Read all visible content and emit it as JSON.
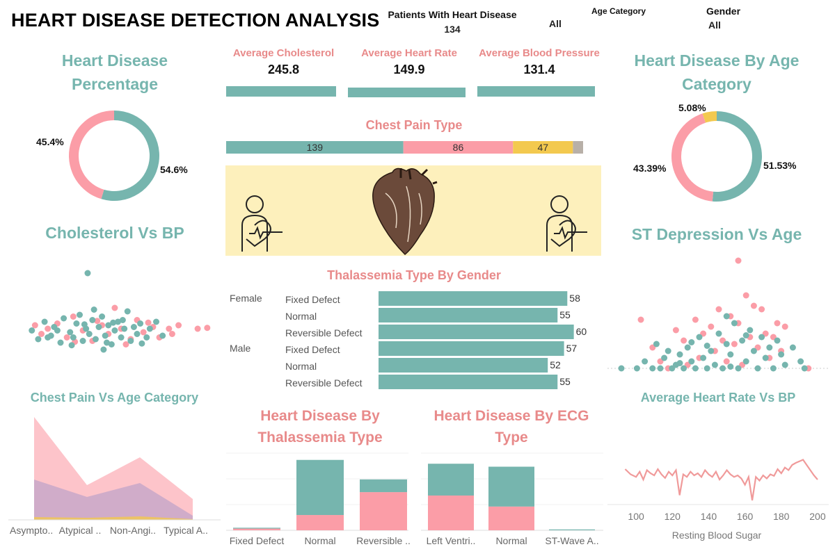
{
  "header": {
    "title": "HEART DISEASE DETECTION ANALYSIS",
    "patients_label": "Patients With Heart Disease",
    "patients_value": "134",
    "filter_all_1": "All",
    "age_category_label": "Age Category",
    "gender_label": "Gender",
    "gender_value": "All"
  },
  "colors": {
    "teal": "#76b5ae",
    "pink": "#fb9da7",
    "yellow": "#f3c94f",
    "gray": "#b8b0a8",
    "purple": "#c4a6c8",
    "banner": "#fdf0bc"
  },
  "icons": [
    "doctor-heart-icon-left",
    "anatomical-heart-illustration",
    "doctor-heart-icon-right"
  ],
  "chart_data": [
    {
      "id": "heart_disease_percentage",
      "type": "pie",
      "title": "Heart Disease Percentage",
      "slices": [
        {
          "label": "54.6%",
          "value": 54.6,
          "color": "#76b5ae"
        },
        {
          "label": "45.4%",
          "value": 45.4,
          "color": "#fb9da7"
        }
      ]
    },
    {
      "id": "kpis",
      "type": "bar",
      "items": [
        {
          "label": "Average Cholesterol",
          "value": "245.8"
        },
        {
          "label": "Average Heart Rate",
          "value": "149.9"
        },
        {
          "label": "Average Blood Pressure",
          "value": "131.4"
        }
      ]
    },
    {
      "id": "chest_pain_type",
      "type": "bar",
      "title": "Chest Pain Type",
      "stacked": true,
      "segments": [
        {
          "value": 139,
          "label": "139",
          "color": "#76b5ae"
        },
        {
          "value": 86,
          "label": "86",
          "color": "#fb9da7"
        },
        {
          "value": 47,
          "label": "47",
          "color": "#f3c94f"
        },
        {
          "value": 8,
          "label": "",
          "color": "#b8b0a8"
        }
      ]
    },
    {
      "id": "heart_disease_by_age",
      "type": "pie",
      "title": "Heart Disease By Age Category",
      "slices": [
        {
          "label": "51.53%",
          "value": 51.53,
          "color": "#76b5ae"
        },
        {
          "label": "43.39%",
          "value": 43.39,
          "color": "#fb9da7"
        },
        {
          "label": "5.08%",
          "value": 5.08,
          "color": "#f3c94f"
        }
      ]
    },
    {
      "id": "cholesterol_vs_bp",
      "type": "scatter",
      "title": "Cholesterol Vs BP",
      "points_teal": [
        [
          -2.2,
          0.1
        ],
        [
          -2.0,
          -0.4
        ],
        [
          -1.8,
          0.6
        ],
        [
          -1.6,
          -0.2
        ],
        [
          -1.5,
          0.3
        ],
        [
          -1.3,
          -0.6
        ],
        [
          -1.2,
          0.8
        ],
        [
          -1.0,
          0.0
        ],
        [
          -0.9,
          -0.3
        ],
        [
          -0.8,
          0.5
        ],
        [
          -0.7,
          1.0
        ],
        [
          -0.6,
          -0.5
        ],
        [
          -0.5,
          0.2
        ],
        [
          -0.4,
          -0.1
        ],
        [
          -0.3,
          0.7
        ],
        [
          -0.2,
          -0.4
        ],
        [
          -0.1,
          0.3
        ],
        [
          0.0,
          0.9
        ],
        [
          0.1,
          -0.2
        ],
        [
          0.2,
          0.4
        ],
        [
          0.3,
          -0.7
        ],
        [
          0.4,
          0.1
        ],
        [
          0.5,
          0.6
        ],
        [
          0.6,
          -0.3
        ],
        [
          0.7,
          0.2
        ],
        [
          0.8,
          1.2
        ],
        [
          0.9,
          -0.5
        ],
        [
          1.0,
          0.3
        ],
        [
          1.1,
          -0.1
        ],
        [
          1.2,
          0.5
        ],
        [
          1.4,
          -0.3
        ],
        [
          1.5,
          0.2
        ],
        [
          1.7,
          0.6
        ],
        [
          1.9,
          -0.2
        ],
        [
          -1.4,
          0.1
        ],
        [
          -0.55,
          0.45
        ],
        [
          0.15,
          -0.6
        ],
        [
          0.65,
          0.7
        ],
        [
          -0.95,
          -0.75
        ],
        [
          0.35,
          0.55
        ],
        [
          -1.7,
          -0.3
        ],
        [
          -0.25,
          1.3
        ],
        [
          1.25,
          -0.65
        ],
        [
          -0.45,
          3.4
        ],
        [
          0.05,
          -1.0
        ]
      ],
      "points_pink": [
        [
          -2.1,
          0.4
        ],
        [
          -1.9,
          -0.1
        ],
        [
          -1.7,
          0.2
        ],
        [
          -1.4,
          0.5
        ],
        [
          -1.1,
          -0.3
        ],
        [
          -0.9,
          0.9
        ],
        [
          -0.6,
          0.1
        ],
        [
          -0.3,
          -0.5
        ],
        [
          0.0,
          0.4
        ],
        [
          0.2,
          -0.1
        ],
        [
          0.4,
          1.4
        ],
        [
          0.6,
          0.2
        ],
        [
          0.9,
          -0.4
        ],
        [
          1.1,
          0.7
        ],
        [
          1.3,
          0.0
        ],
        [
          1.6,
          0.3
        ],
        [
          1.8,
          -0.3
        ],
        [
          2.1,
          0.2
        ],
        [
          2.4,
          0.4
        ],
        [
          3.0,
          0.2
        ],
        [
          3.3,
          0.25
        ],
        [
          0.75,
          -0.7
        ],
        [
          -0.15,
          0.65
        ],
        [
          1.45,
          0.55
        ],
        [
          -0.85,
          -0.55
        ],
        [
          2.2,
          -0.1
        ]
      ]
    },
    {
      "id": "st_depression_vs_age",
      "type": "scatter",
      "title": "ST Depression Vs Age",
      "points_teal": [
        [
          30,
          0.0
        ],
        [
          34,
          0.0
        ],
        [
          36,
          0.4
        ],
        [
          38,
          0.0
        ],
        [
          39,
          1.4
        ],
        [
          40,
          0.0
        ],
        [
          41,
          0.6
        ],
        [
          42,
          1.0
        ],
        [
          43,
          0.0
        ],
        [
          44,
          0.2
        ],
        [
          45,
          0.8
        ],
        [
          46,
          0.0
        ],
        [
          47,
          1.2
        ],
        [
          48,
          0.4
        ],
        [
          49,
          0.0
        ],
        [
          50,
          1.8
        ],
        [
          51,
          0.6
        ],
        [
          52,
          0.0
        ],
        [
          53,
          1.0
        ],
        [
          54,
          0.2
        ],
        [
          55,
          2.0
        ],
        [
          56,
          0.0
        ],
        [
          57,
          1.4
        ],
        [
          58,
          0.8
        ],
        [
          59,
          2.6
        ],
        [
          60,
          0.0
        ],
        [
          61,
          1.6
        ],
        [
          62,
          0.4
        ],
        [
          63,
          2.2
        ],
        [
          64,
          1.0
        ],
        [
          65,
          0.0
        ],
        [
          66,
          1.8
        ],
        [
          67,
          0.6
        ],
        [
          68,
          1.2
        ],
        [
          69,
          0.0
        ],
        [
          70,
          1.6
        ],
        [
          71,
          0.8
        ],
        [
          72,
          0.2
        ],
        [
          74,
          1.2
        ],
        [
          76,
          0.4
        ],
        [
          77,
          0.0
        ],
        [
          45,
          0.3
        ],
        [
          52,
          1.3
        ],
        [
          58,
          0.1
        ],
        [
          62,
          1.9
        ],
        [
          48,
          1.5
        ],
        [
          57,
          3.0
        ]
      ],
      "points_pink": [
        [
          35,
          2.8
        ],
        [
          38,
          1.2
        ],
        [
          40,
          0.4
        ],
        [
          42,
          0.0
        ],
        [
          44,
          2.2
        ],
        [
          46,
          1.6
        ],
        [
          47,
          0.2
        ],
        [
          49,
          2.8
        ],
        [
          50,
          0.6
        ],
        [
          51,
          2.0
        ],
        [
          53,
          2.4
        ],
        [
          54,
          1.0
        ],
        [
          55,
          3.4
        ],
        [
          56,
          1.6
        ],
        [
          57,
          0.4
        ],
        [
          58,
          3.0
        ],
        [
          59,
          1.4
        ],
        [
          60,
          2.6
        ],
        [
          61,
          0.2
        ],
        [
          62,
          4.2
        ],
        [
          63,
          1.8
        ],
        [
          64,
          3.6
        ],
        [
          65,
          1.2
        ],
        [
          66,
          3.4
        ],
        [
          67,
          2.0
        ],
        [
          68,
          0.6
        ],
        [
          69,
          1.8
        ],
        [
          70,
          2.6
        ],
        [
          71,
          1.0
        ],
        [
          72,
          2.4
        ],
        [
          78,
          0.0
        ],
        [
          60,
          6.2
        ]
      ]
    },
    {
      "id": "thalassemia_by_gender",
      "type": "bar",
      "title": "Thalassemia Type By Gender",
      "rows": [
        {
          "group": "Female",
          "category": "Fixed Defect",
          "value": 58
        },
        {
          "group": "",
          "category": "Normal",
          "value": 55
        },
        {
          "group": "",
          "category": "Reversible Defect",
          "value": 60
        },
        {
          "group": "Male",
          "category": "Fixed Defect",
          "value": 57
        },
        {
          "group": "",
          "category": "Normal",
          "value": 52
        },
        {
          "group": "",
          "category": "Reversible Defect",
          "value": 55
        }
      ]
    },
    {
      "id": "chest_pain_vs_age",
      "type": "area",
      "title": "Chest Pain Vs Age Category",
      "categories": [
        "Asympto..",
        "Atypical ..",
        "Non-Angi..",
        "Typical A.."
      ],
      "series": [
        {
          "values": [
            148,
            50,
            90,
            30
          ],
          "color": "#fb9da7"
        },
        {
          "values": [
            58,
            33,
            53,
            6
          ],
          "color": "#c4a6c8"
        },
        {
          "values": [
            4,
            3,
            5,
            1
          ],
          "color": "#f3c94f"
        }
      ]
    },
    {
      "id": "heart_disease_by_thalassemia",
      "type": "bar",
      "title": "Heart Disease By Thalassemia Type",
      "categories": [
        "Fixed Defect",
        "Normal",
        "Reversible .."
      ],
      "stack_pink": [
        4,
        36,
        90
      ],
      "stack_teal": [
        2,
        130,
        30
      ]
    },
    {
      "id": "heart_disease_by_ecg",
      "type": "bar",
      "title": "Heart Disease By ECG Type",
      "categories": [
        "Left Ventri..",
        "Normal",
        "ST-Wave A.."
      ],
      "stack_pink": [
        82,
        56,
        0
      ],
      "stack_teal": [
        75,
        94,
        2
      ]
    },
    {
      "id": "avg_heart_rate_vs_bp",
      "type": "line",
      "title": "Average Heart Rate Vs BP",
      "xlabel": "Resting Blood Sugar",
      "xticks": [
        100,
        120,
        140,
        160,
        180,
        200
      ],
      "xlim": [
        90,
        205
      ],
      "x": [
        94,
        97,
        100,
        102,
        104,
        106,
        108,
        110,
        112,
        114,
        116,
        118,
        120,
        122,
        124,
        126,
        128,
        130,
        132,
        134,
        136,
        138,
        140,
        142,
        144,
        146,
        148,
        150,
        152,
        154,
        156,
        158,
        160,
        162,
        164,
        166,
        168,
        170,
        172,
        174,
        176,
        178,
        180,
        182,
        184,
        186,
        188,
        190,
        192,
        194,
        196,
        198,
        200
      ],
      "y": [
        160,
        150,
        145,
        155,
        140,
        158,
        152,
        148,
        160,
        150,
        143,
        155,
        148,
        158,
        110,
        150,
        145,
        155,
        148,
        152,
        145,
        158,
        150,
        145,
        155,
        140,
        148,
        158,
        150,
        145,
        148,
        142,
        130,
        145,
        100,
        145,
        138,
        148,
        142,
        150,
        147,
        160,
        152,
        163,
        158,
        168,
        172,
        175,
        178,
        168,
        158,
        148,
        140
      ]
    }
  ]
}
